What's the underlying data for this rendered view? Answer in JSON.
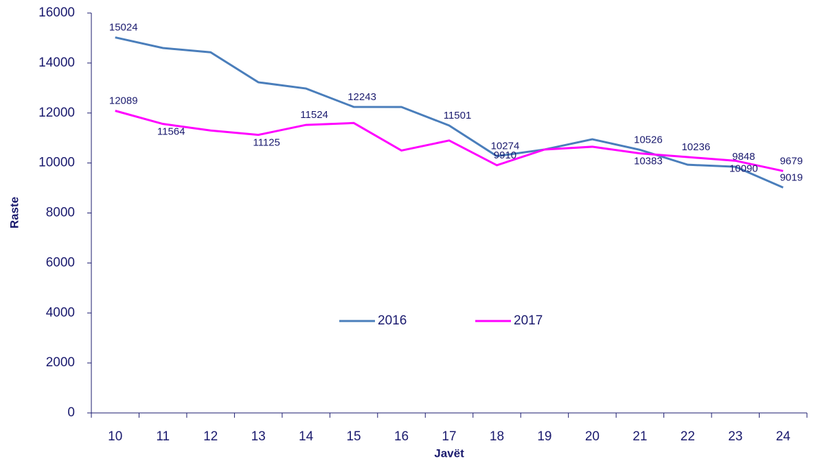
{
  "chart_data": {
    "type": "line",
    "x_label": "Javët",
    "y_label": "Raste",
    "categories": [
      "10",
      "11",
      "12",
      "13",
      "14",
      "15",
      "16",
      "17",
      "18",
      "19",
      "20",
      "21",
      "22",
      "23",
      "24"
    ],
    "series": [
      {
        "name": "2016",
        "color": "#4a7ebb",
        "values": [
          15024,
          14600,
          14430,
          13230,
          12980,
          12243,
          12240,
          11501,
          10274,
          10540,
          10950,
          10526,
          9930,
          9848,
          9019
        ],
        "value_labels": [
          "15024",
          null,
          null,
          null,
          null,
          "12243",
          null,
          "11501",
          "10274",
          null,
          null,
          "10526",
          null,
          "9848",
          "9019"
        ]
      },
      {
        "name": "2017",
        "color": "#ff00ff",
        "values": [
          12089,
          11564,
          11300,
          11125,
          11524,
          11600,
          10500,
          10900,
          9910,
          10540,
          10650,
          10383,
          10236,
          10090,
          9679
        ],
        "value_labels": [
          "12089",
          "11564",
          null,
          "11125",
          "11524",
          null,
          null,
          null,
          "9910",
          null,
          null,
          "10383",
          "10236",
          "10090",
          "9679"
        ]
      }
    ],
    "ylim": [
      0,
      16000
    ],
    "yticks": [
      0,
      2000,
      4000,
      6000,
      8000,
      10000,
      12000,
      14000,
      16000
    ],
    "legend": "center"
  }
}
